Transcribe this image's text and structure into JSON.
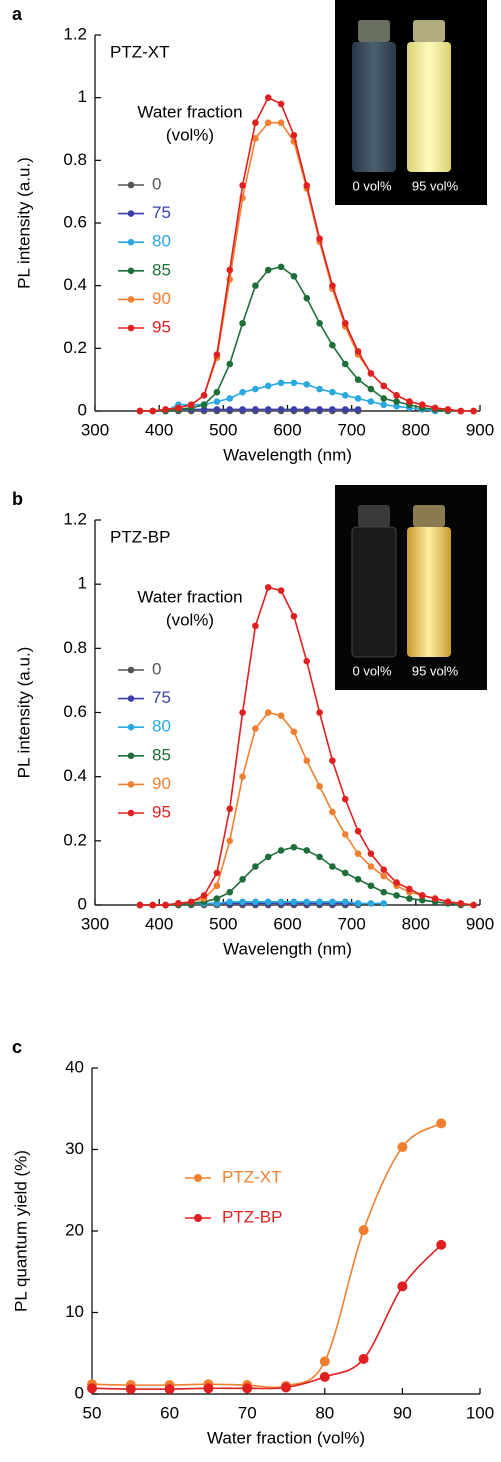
{
  "chart_data": [
    {
      "type": "line",
      "panel_label": "a",
      "title": "PTZ-XT",
      "x_label": "Wavelength (nm)",
      "y_label": "PL intensity (a.u.)",
      "legend_title": [
        "Water fraction",
        "(vol%)"
      ],
      "inset_labels": [
        "0 vol%",
        "95 vol%"
      ],
      "xlim": [
        300,
        900
      ],
      "xticks": [
        300,
        400,
        500,
        600,
        700,
        800,
        900
      ],
      "ylim": [
        0,
        1.2
      ],
      "yticks": [
        0,
        0.2,
        0.4,
        0.6,
        0.8,
        1,
        1.2
      ],
      "x": [
        370,
        390,
        410,
        430,
        450,
        470,
        490,
        510,
        530,
        550,
        570,
        590,
        610,
        630,
        650,
        670,
        690,
        710,
        730,
        750,
        770,
        790,
        810,
        830,
        850,
        870,
        890
      ],
      "series": [
        {
          "name": "0",
          "color": "#555555",
          "values": [
            0,
            0,
            0,
            0,
            0,
            0,
            0,
            0,
            0,
            0,
            0,
            0,
            0,
            0,
            0,
            0,
            0,
            0,
            null,
            null,
            null,
            null,
            null,
            null,
            null,
            null,
            null
          ]
        },
        {
          "name": "75",
          "color": "#3a40a8",
          "values": [
            0,
            0,
            0,
            0.005,
            0.005,
            0.005,
            0.005,
            0.005,
            0.005,
            0.005,
            0.005,
            0.005,
            0.005,
            0.005,
            0.005,
            0.005,
            0.005,
            0.005,
            null,
            null,
            null,
            null,
            null,
            null,
            null,
            null,
            null
          ]
        },
        {
          "name": "80",
          "color": "#2aa8e0",
          "values": [
            0,
            0,
            0,
            0.02,
            0.02,
            0.02,
            0.03,
            0.04,
            0.06,
            0.07,
            0.08,
            0.09,
            0.09,
            0.085,
            0.07,
            0.06,
            0.05,
            0.04,
            0.03,
            0.02,
            0.015,
            0.01,
            0.005,
            0,
            null,
            null,
            null
          ]
        },
        {
          "name": "85",
          "color": "#1e6e3a",
          "values": [
            0,
            0,
            0,
            0.005,
            0.01,
            0.02,
            0.06,
            0.15,
            0.28,
            0.4,
            0.45,
            0.46,
            0.43,
            0.36,
            0.28,
            0.21,
            0.15,
            0.1,
            0.07,
            0.04,
            0.03,
            0.02,
            0.01,
            0.005,
            0,
            0,
            0
          ]
        },
        {
          "name": "90",
          "color": "#f08030",
          "values": [
            0,
            0,
            0.005,
            0.01,
            0.02,
            0.05,
            0.17,
            0.42,
            0.68,
            0.87,
            0.92,
            0.92,
            0.86,
            0.71,
            0.54,
            0.39,
            0.27,
            0.18,
            0.12,
            0.08,
            0.05,
            0.03,
            0.02,
            0.01,
            0.005,
            0,
            0
          ]
        },
        {
          "name": "95",
          "color": "#e02020",
          "values": [
            0,
            0,
            0.005,
            0.01,
            0.02,
            0.05,
            0.18,
            0.45,
            0.72,
            0.92,
            1,
            0.98,
            0.88,
            0.72,
            0.55,
            0.4,
            0.28,
            0.19,
            0.12,
            0.08,
            0.05,
            0.03,
            0.02,
            0.01,
            0.005,
            0,
            0
          ]
        }
      ]
    },
    {
      "type": "line",
      "panel_label": "b",
      "title": "PTZ-BP",
      "x_label": "Wavelength (nm)",
      "y_label": "PL intensity (a.u.)",
      "legend_title": [
        "Water fraction",
        "(vol%)"
      ],
      "inset_labels": [
        "0 vol%",
        "95 vol%"
      ],
      "xlim": [
        300,
        900
      ],
      "xticks": [
        300,
        400,
        500,
        600,
        700,
        800,
        900
      ],
      "ylim": [
        0,
        1.2
      ],
      "yticks": [
        0,
        0.2,
        0.4,
        0.6,
        0.8,
        1,
        1.2
      ],
      "x": [
        370,
        390,
        410,
        430,
        450,
        470,
        490,
        510,
        530,
        550,
        570,
        590,
        610,
        630,
        650,
        670,
        690,
        710,
        730,
        750,
        770,
        790,
        810,
        830,
        850,
        870,
        890
      ],
      "series": [
        {
          "name": "0",
          "color": "#555555",
          "values": [
            0,
            0,
            0,
            0,
            0,
            0,
            0,
            0,
            0,
            0,
            0,
            0,
            0,
            0,
            0,
            0,
            0,
            0,
            null,
            null,
            null,
            null,
            null,
            null,
            null,
            null,
            null
          ]
        },
        {
          "name": "75",
          "color": "#3a40a8",
          "values": [
            0,
            0,
            0,
            0.005,
            0.005,
            0.005,
            0.005,
            0.005,
            0.005,
            0.005,
            0.005,
            0.005,
            0.005,
            0.005,
            0.005,
            0.005,
            0.005,
            0.005,
            null,
            null,
            null,
            null,
            null,
            null,
            null,
            null,
            null
          ]
        },
        {
          "name": "80",
          "color": "#2aa8e0",
          "values": [
            0,
            0,
            0,
            0.005,
            0.005,
            0.005,
            0.005,
            0.01,
            0.01,
            0.01,
            0.01,
            0.01,
            0.01,
            0.01,
            0.01,
            0.01,
            0.01,
            0.005,
            0.005,
            0.005,
            null,
            null,
            null,
            null,
            null,
            null,
            null
          ]
        },
        {
          "name": "85",
          "color": "#1e6e3a",
          "values": [
            0,
            0,
            0,
            0,
            0.005,
            0.01,
            0.02,
            0.04,
            0.08,
            0.12,
            0.15,
            0.17,
            0.18,
            0.17,
            0.15,
            0.12,
            0.1,
            0.08,
            0.06,
            0.04,
            0.03,
            0.02,
            0.015,
            0.01,
            0.005,
            0,
            0
          ]
        },
        {
          "name": "90",
          "color": "#f08030",
          "values": [
            0,
            0,
            0,
            0.005,
            0.01,
            0.02,
            0.06,
            0.2,
            0.4,
            0.55,
            0.6,
            0.59,
            0.54,
            0.45,
            0.37,
            0.29,
            0.22,
            0.16,
            0.12,
            0.09,
            0.06,
            0.04,
            0.03,
            0.02,
            0.01,
            0.005,
            0
          ]
        },
        {
          "name": "95",
          "color": "#e02020",
          "values": [
            0,
            0,
            0,
            0.005,
            0.01,
            0.03,
            0.1,
            0.3,
            0.6,
            0.87,
            0.99,
            0.98,
            0.9,
            0.76,
            0.6,
            0.45,
            0.33,
            0.23,
            0.16,
            0.11,
            0.07,
            0.05,
            0.03,
            0.02,
            0.01,
            0.005,
            0
          ]
        }
      ]
    },
    {
      "type": "line",
      "panel_label": "c",
      "x_label": "Water fraction (vol%)",
      "y_label": "PL quantum yield (%)",
      "xlim": [
        50,
        100
      ],
      "xticks": [
        50,
        60,
        70,
        80,
        90,
        100
      ],
      "ylim": [
        0,
        40
      ],
      "yticks": [
        0,
        10,
        20,
        30,
        40
      ],
      "x": [
        50,
        55,
        60,
        65,
        70,
        75,
        80,
        85,
        90,
        95
      ],
      "series": [
        {
          "name": "PTZ-XT",
          "color": "#f08030",
          "values": [
            1.2,
            1.1,
            1.1,
            1.2,
            1.1,
            1.0,
            4.0,
            20.1,
            30.3,
            33.2
          ]
        },
        {
          "name": "PTZ-BP",
          "color": "#e02020",
          "values": [
            0.7,
            0.6,
            0.6,
            0.7,
            0.7,
            0.8,
            2.1,
            4.3,
            13.2,
            18.3
          ]
        }
      ]
    }
  ]
}
